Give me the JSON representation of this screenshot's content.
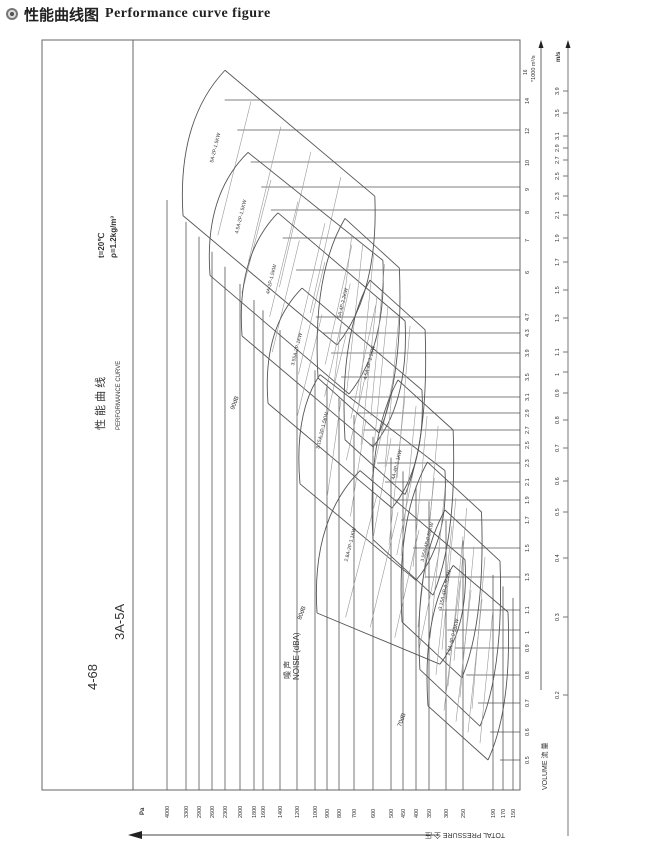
{
  "header": {
    "icon": "circle-bullet-icon",
    "title_cn": "性能曲线图",
    "title_en": "Performance curve figure"
  },
  "panel": {
    "model": "4-68",
    "range": "3A-5A",
    "title_cn": "性 能 曲 线",
    "title_en": "PERFORMANCE CURVE",
    "temp": "t=20℃",
    "density": "ρ=1.2kg/m³"
  },
  "chart_data": {
    "type": "line",
    "title": "",
    "xlabel": "TOTAL PRESSURE 全 压",
    "x_unit": "Pa",
    "ylabel": "VOLUME 流 量",
    "y_unit": "*1000 m³/s",
    "y_top_tick": "16",
    "velocity_unit": "m/s",
    "pressure_ticks": [
      4000,
      3300,
      2900,
      2600,
      2300,
      2000,
      1800,
      1600,
      1400,
      1200,
      1000,
      900,
      800,
      700,
      600,
      500,
      450,
      400,
      350,
      300,
      250,
      190,
      170,
      150
    ],
    "volume_ticks": [
      14,
      12,
      10,
      9,
      8,
      7,
      6,
      4.7,
      4.3,
      3.9,
      3.5,
      3.1,
      2.9,
      2.7,
      2.5,
      2.3,
      2.1,
      1.9,
      1.7,
      1.5,
      1.3,
      1.1,
      1.0,
      0.9,
      0.8,
      0.7,
      0.6,
      0.5
    ],
    "velocity_ticks": [
      3.9,
      3.5,
      3.1,
      2.9,
      2.7,
      2.5,
      2.3,
      2.1,
      1.9,
      1.7,
      1.5,
      1.3,
      1.1,
      1.0,
      0.9,
      0.8,
      0.7,
      0.6,
      0.5,
      0.4,
      0.3,
      0.2
    ],
    "noise_labels": [
      "90dB",
      "80dB",
      "70dB"
    ],
    "noise_title_cn": "噪 声",
    "noise_title_en": "NOISE (dBA)",
    "fans": [
      {
        "label": "5A-2P-1.5KW",
        "corners": {
          "top": [
            2300,
            15.7
          ],
          "bottom": [
            3410,
            7.8
          ],
          "right_top": [
            590,
            8.6
          ],
          "right_bottom": [
            817,
            4.06
          ]
        }
      },
      {
        "label": "4.5A-2P-1.5KW",
        "corners": {
          "top": [
            1886,
            10.6
          ],
          "bottom": [
            2646,
            5.85
          ],
          "right_top": [
            545,
            6.3
          ],
          "right_bottom": [
            733,
            3.16
          ]
        }
      },
      {
        "label": "4A-2P-1.5KW",
        "corners": {
          "top": [
            1424,
            7.9
          ],
          "bottom": [
            1971,
            4.24
          ],
          "right_top": [
            442,
            4.6
          ],
          "right_bottom": [
            600,
            2.48
          ]
        }
      },
      {
        "label": "3.55A-2P-1KW",
        "corners": {
          "top": [
            1144,
            5.5
          ],
          "bottom": [
            1541,
            3.02
          ],
          "right_top": [
            377,
            3.24
          ],
          "right_bottom": [
            496,
            1.82
          ]
        }
      },
      {
        "label": "3.15A-2P-1.5KW",
        "corners": {
          "top": [
            958,
            3.54
          ],
          "bottom": [
            1167,
            2.08
          ],
          "right_top": [
            303,
            2.22
          ],
          "right_bottom": [
            400,
            1.28
          ]
        }
      },
      {
        "label": "2.8A-2P-1.1KW",
        "corners": {
          "top": [
            668,
            2.22
          ],
          "bottom": [
            983,
            1.085
          ],
          "right_top": [
            246,
            1.42
          ],
          "right_bottom": [
            318,
            0.84
          ]
        }
      },
      {
        "label": "5A-4P-2.2KW",
        "corners": {
          "top": [
            760,
            7.7
          ],
          "bottom": [
            975,
            3.48
          ],
          "right_top": [
            465,
            6.06
          ],
          "right_bottom": [
            566,
            2.66
          ]
        }
      },
      {
        "label": "4.5A-4P-1.1KW",
        "corners": {
          "top": [
            616,
            5.72
          ],
          "bottom": [
            760,
            2.57
          ],
          "right_top": [
            365,
            4.38
          ],
          "right_bottom": [
            442,
            1.96
          ]
        }
      },
      {
        "label": "4A-4P-1.1KW",
        "corners": {
          "top": [
            471,
            3.44
          ],
          "bottom": [
            600,
            1.56
          ],
          "right_top": [
            279,
            2.7
          ],
          "right_bottom": [
            338,
            1.19
          ]
        }
      },
      {
        "label": "3.55A-4P-0.55KW",
        "corners": {
          "top": [
            356,
            2.31
          ],
          "bottom": [
            454,
            1.04
          ],
          "right_top": [
            213,
            1.78
          ],
          "right_bottom": [
            253,
            0.79
          ]
        }
      },
      {
        "label": "3.15A-4P-0.55KW",
        "corners": {
          "top": [
            303,
            1.8
          ],
          "bottom": [
            385,
            0.82
          ],
          "right_top": [
            176,
            1.41
          ],
          "right_bottom": [
            216,
            0.62
          ]
        }
      },
      {
        "label": "2.8A-4P-0.55KW",
        "corners": {
          "top": [
            279,
            1.38
          ],
          "bottom": [
            354,
            0.69
          ],
          "right_top": [
            160,
            1.09
          ],
          "right_bottom": [
            200,
            0.5
          ]
        }
      }
    ],
    "grid": true,
    "colors": {
      "line": "#555555",
      "text": "#333333"
    }
  }
}
